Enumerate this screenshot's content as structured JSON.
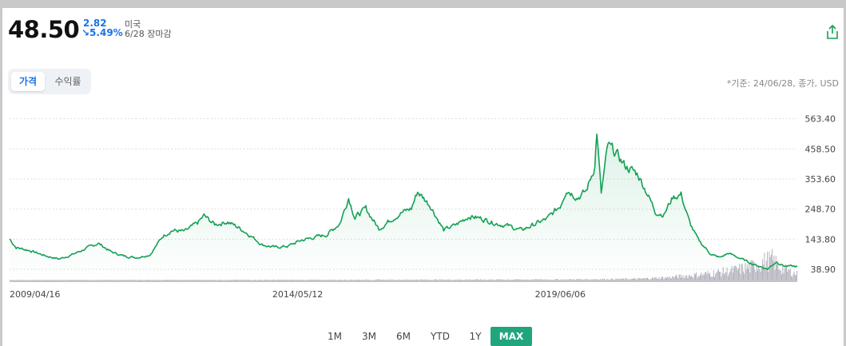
{
  "header": {
    "price": "48.50",
    "change_abs": "2.82",
    "change_pct": "↘5.49%",
    "market": "미국",
    "date_status": "6/28 장마감"
  },
  "tabs": [
    {
      "label": "가격",
      "active": true
    },
    {
      "label": "수익률",
      "active": false
    }
  ],
  "basis_note": "*기준: 24/06/28, 종가, USD",
  "ranges": [
    {
      "label": "1M",
      "active": false
    },
    {
      "label": "3M",
      "active": false
    },
    {
      "label": "6M",
      "active": false
    },
    {
      "label": "YTD",
      "active": false
    },
    {
      "label": "1Y",
      "active": false
    },
    {
      "label": "MAX",
      "active": true
    }
  ],
  "colors": {
    "line": "#14a055",
    "area": "#14a055",
    "volume": "#9c9aa8",
    "accent_blue": "#1a73e8",
    "range_active": "#20a57d"
  },
  "chart_data": {
    "type": "line",
    "y_ticks": [
      38.9,
      143.8,
      248.7,
      353.6,
      458.5,
      563.4
    ],
    "y_tick_labels": [
      "38.90",
      "143.80",
      "248.70",
      "353.60",
      "458.50",
      "563.40"
    ],
    "x_tick_labels": [
      "2009/04/16",
      "2014/05/12",
      "2019/06/06"
    ],
    "x_range": [
      "2009/04/16",
      "2024/06/28"
    ],
    "ylim": [
      0,
      585
    ],
    "grid": "horizontal-dotted",
    "series": [
      {
        "points": [
          [
            "2009-04-16",
            145
          ],
          [
            "2009-06-01",
            115
          ],
          [
            "2009-09-01",
            105
          ],
          [
            "2010-01-01",
            85
          ],
          [
            "2010-04-01",
            75
          ],
          [
            "2010-07-01",
            90
          ],
          [
            "2010-10-01",
            110
          ],
          [
            "2011-01-01",
            130
          ],
          [
            "2011-04-01",
            100
          ],
          [
            "2011-07-01",
            85
          ],
          [
            "2011-10-01",
            80
          ],
          [
            "2012-01-01",
            90
          ],
          [
            "2012-04-01",
            155
          ],
          [
            "2012-06-01",
            175
          ],
          [
            "2012-09-01",
            170
          ],
          [
            "2012-12-01",
            200
          ],
          [
            "2013-01-15",
            225
          ],
          [
            "2013-04-01",
            195
          ],
          [
            "2013-07-01",
            205
          ],
          [
            "2013-10-01",
            180
          ],
          [
            "2013-12-01",
            160
          ],
          [
            "2014-03-01",
            125
          ],
          [
            "2014-06-01",
            115
          ],
          [
            "2014-09-01",
            120
          ],
          [
            "2014-12-01",
            140
          ],
          [
            "2015-03-01",
            150
          ],
          [
            "2015-06-01",
            160
          ],
          [
            "2015-09-01",
            200
          ],
          [
            "2015-11-01",
            290
          ],
          [
            "2015-12-15",
            220
          ],
          [
            "2016-03-01",
            250
          ],
          [
            "2016-06-01",
            180
          ],
          [
            "2016-09-01",
            215
          ],
          [
            "2016-11-01",
            235
          ],
          [
            "2017-01-15",
            250
          ],
          [
            "2017-03-01",
            310
          ],
          [
            "2017-06-01",
            260
          ],
          [
            "2017-09-01",
            175
          ],
          [
            "2017-12-01",
            195
          ],
          [
            "2018-03-01",
            225
          ],
          [
            "2018-06-01",
            215
          ],
          [
            "2018-09-01",
            200
          ],
          [
            "2018-12-01",
            190
          ],
          [
            "2019-03-01",
            175
          ],
          [
            "2019-06-01",
            195
          ],
          [
            "2019-09-01",
            215
          ],
          [
            "2019-12-01",
            260
          ],
          [
            "2020-01-15",
            320
          ],
          [
            "2020-04-01",
            290
          ],
          [
            "2020-06-01",
            310
          ],
          [
            "2020-08-01",
            400
          ],
          [
            "2020-08-15",
            520
          ],
          [
            "2020-09-15",
            300
          ],
          [
            "2020-11-01",
            470
          ],
          [
            "2021-01-01",
            440
          ],
          [
            "2021-03-01",
            400
          ],
          [
            "2021-06-01",
            370
          ],
          [
            "2021-08-01",
            310
          ],
          [
            "2021-10-01",
            240
          ],
          [
            "2021-12-01",
            230
          ],
          [
            "2022-02-01",
            290
          ],
          [
            "2022-04-01",
            300
          ],
          [
            "2022-05-01",
            250
          ],
          [
            "2022-06-01",
            200
          ],
          [
            "2022-08-01",
            140
          ],
          [
            "2022-11-01",
            90
          ],
          [
            "2023-01-01",
            80
          ],
          [
            "2023-03-01",
            95
          ],
          [
            "2023-06-01",
            75
          ],
          [
            "2023-09-01",
            55
          ],
          [
            "2023-12-01",
            40
          ],
          [
            "2024-02-01",
            65
          ],
          [
            "2024-04-01",
            50
          ],
          [
            "2024-06-28",
            48.5
          ]
        ]
      }
    ],
    "volume": {
      "points": [
        [
          "2009-04-16",
          0.02
        ],
        [
          "2015-01-01",
          0.03
        ],
        [
          "2020-01-01",
          0.05
        ],
        [
          "2021-06-01",
          0.08
        ],
        [
          "2022-01-01",
          0.15
        ],
        [
          "2022-09-01",
          0.3
        ],
        [
          "2023-03-01",
          0.45
        ],
        [
          "2023-08-01",
          0.65
        ],
        [
          "2023-11-01",
          0.9
        ],
        [
          "2024-01-01",
          1.0
        ],
        [
          "2024-03-01",
          0.6
        ],
        [
          "2024-06-28",
          0.3
        ]
      ]
    }
  }
}
